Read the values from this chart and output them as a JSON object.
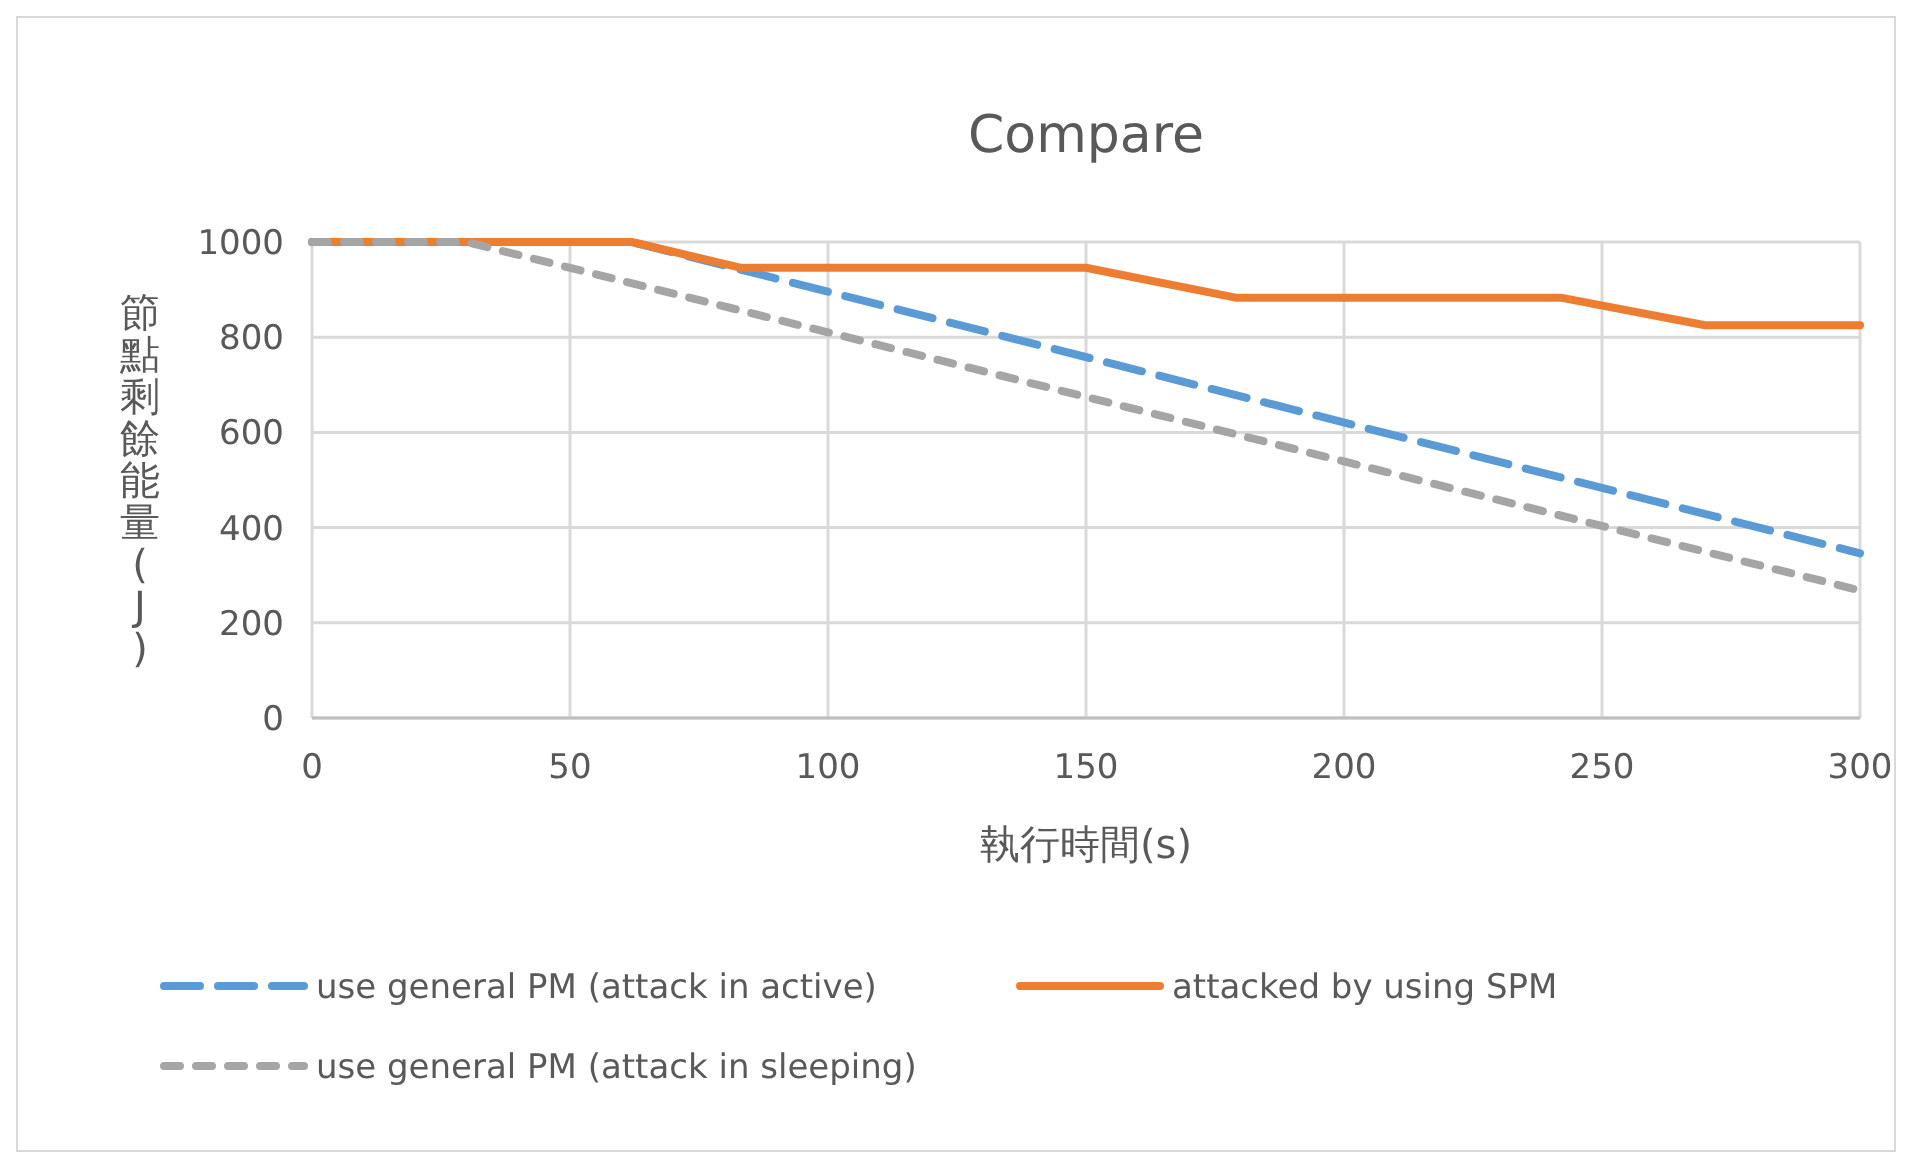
{
  "chart_data": {
    "type": "line",
    "title": "Compare",
    "xlabel": "執行時間(s)",
    "ylabel": "節點剩餘能量(J)",
    "xlim": [
      0,
      300
    ],
    "xticks": [
      0,
      50,
      100,
      150,
      200,
      250,
      300
    ],
    "ylim": [
      0,
      1000
    ],
    "yticks": [
      0,
      200,
      400,
      600,
      800,
      1000
    ],
    "grid": true,
    "legend": "bottom",
    "series": [
      {
        "name": "use general PM (attack in active)",
        "color": "#5b9bd5",
        "line_style": "dashed",
        "x": [
          0,
          62,
          300
        ],
        "values": [
          1000,
          1000,
          346
        ]
      },
      {
        "name": "attacked by using SPM",
        "color": "#ed7d31",
        "line_style": "solid",
        "x": [
          0,
          62,
          83,
          150,
          179,
          242,
          270,
          300
        ],
        "values": [
          1000,
          1000,
          946,
          946,
          883,
          883,
          825,
          825
        ]
      },
      {
        "name": "use general PM (attack in sleeping)",
        "color": "#a5a5a5",
        "line_style": "dotted",
        "x": [
          0,
          30,
          300
        ],
        "values": [
          1000,
          1000,
          268
        ]
      }
    ]
  }
}
